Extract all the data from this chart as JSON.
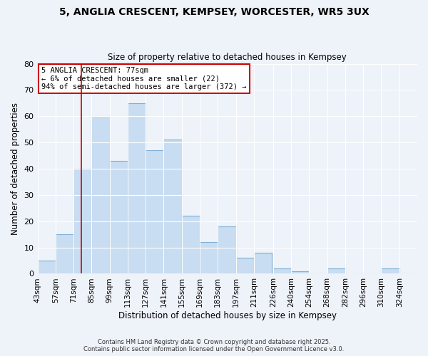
{
  "title": "5, ANGLIA CRESCENT, KEMPSEY, WORCESTER, WR5 3UX",
  "subtitle": "Size of property relative to detached houses in Kempsey",
  "xlabel": "Distribution of detached houses by size in Kempsey",
  "ylabel": "Number of detached properties",
  "bin_starts": [
    43,
    57,
    71,
    85,
    99,
    113,
    127,
    141,
    155,
    169,
    183,
    197,
    211,
    226,
    240,
    254,
    268,
    282,
    296,
    310,
    324
  ],
  "bin_width": 14,
  "values": [
    5,
    15,
    40,
    60,
    43,
    65,
    47,
    51,
    22,
    12,
    18,
    6,
    8,
    2,
    1,
    0,
    2,
    0,
    0,
    2,
    0
  ],
  "bar_color": "#c9ddf2",
  "bar_edge_color": "#7fafd4",
  "ylim": [
    0,
    80
  ],
  "yticks": [
    0,
    10,
    20,
    30,
    40,
    50,
    60,
    70,
    80
  ],
  "vline_x": 77,
  "vline_color": "#cc0000",
  "annotation_title": "5 ANGLIA CRESCENT: 77sqm",
  "annotation_line1": "← 6% of detached houses are smaller (22)",
  "annotation_line2": "94% of semi-detached houses are larger (372) →",
  "annotation_box_facecolor": "#ffffff",
  "annotation_box_edgecolor": "#cc0000",
  "background_color": "#eef2f9",
  "grid_color": "#ffffff",
  "tick_label_fontsize": 7.5,
  "footer1": "Contains HM Land Registry data © Crown copyright and database right 2025.",
  "footer2": "Contains public sector information licensed under the Open Government Licence v3.0."
}
